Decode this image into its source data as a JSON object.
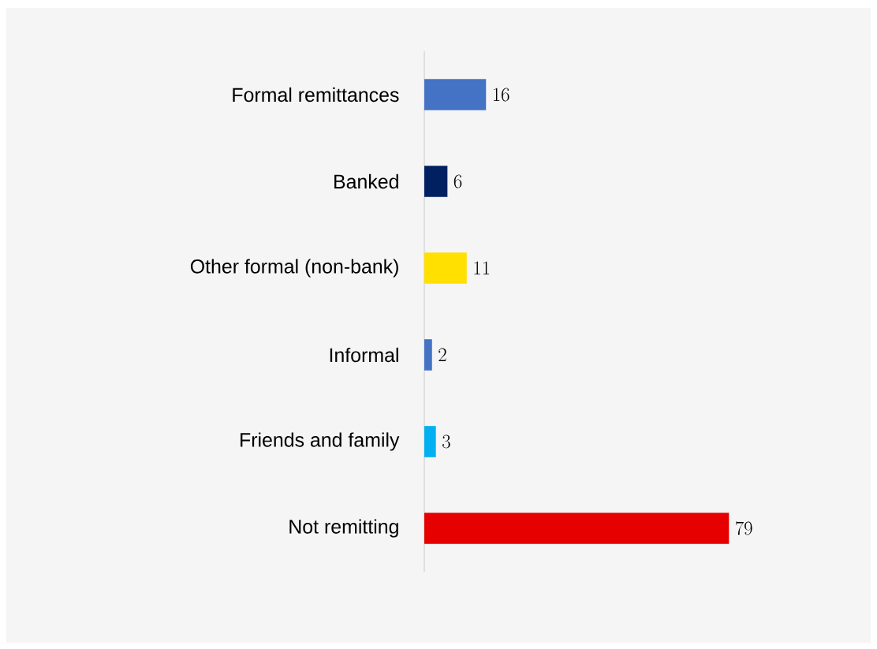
{
  "chart_data": {
    "type": "bar",
    "orientation": "horizontal",
    "categories": [
      "Formal remittances",
      "Banked",
      "Other formal (non-bank)",
      "Informal",
      "Friends and family",
      "Not remitting"
    ],
    "values": [
      16,
      6,
      11,
      2,
      3,
      79
    ],
    "colors": [
      "#4472c4",
      "#002060",
      "#ffe000",
      "#4472c4",
      "#00b0f0",
      "#e60000"
    ],
    "data_labels": true
  }
}
